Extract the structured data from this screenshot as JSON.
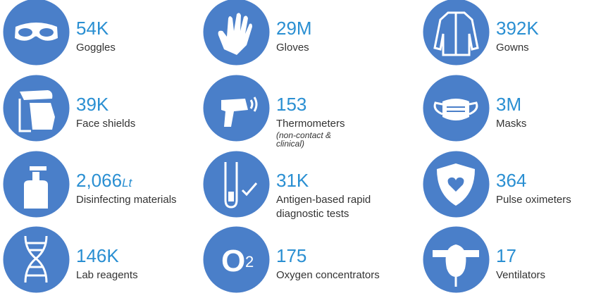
{
  "items": [
    {
      "value": "54K",
      "label": "Goggles"
    },
    {
      "value": "29M",
      "label": "Gloves"
    },
    {
      "value": "392K",
      "label": "Gowns"
    },
    {
      "value": "39K",
      "label": "Face shields"
    },
    {
      "value": "153",
      "label": "Thermometers",
      "note": "(non-contact & clinical)"
    },
    {
      "value": "3M",
      "label": "Masks"
    },
    {
      "value": "2,066",
      "unit": "Lt",
      "label": "Disinfecting materials"
    },
    {
      "value": "31K",
      "label": "Antigen-based rapid diagnostic tests"
    },
    {
      "value": "364",
      "label": "Pulse oximeters"
    },
    {
      "value": "146K",
      "label": "Lab reagents"
    },
    {
      "value": "175",
      "label": "Oxygen concentrators",
      "icon_text": "O",
      "icon_sup": "2"
    },
    {
      "value": "17",
      "label": "Ventilators"
    }
  ]
}
